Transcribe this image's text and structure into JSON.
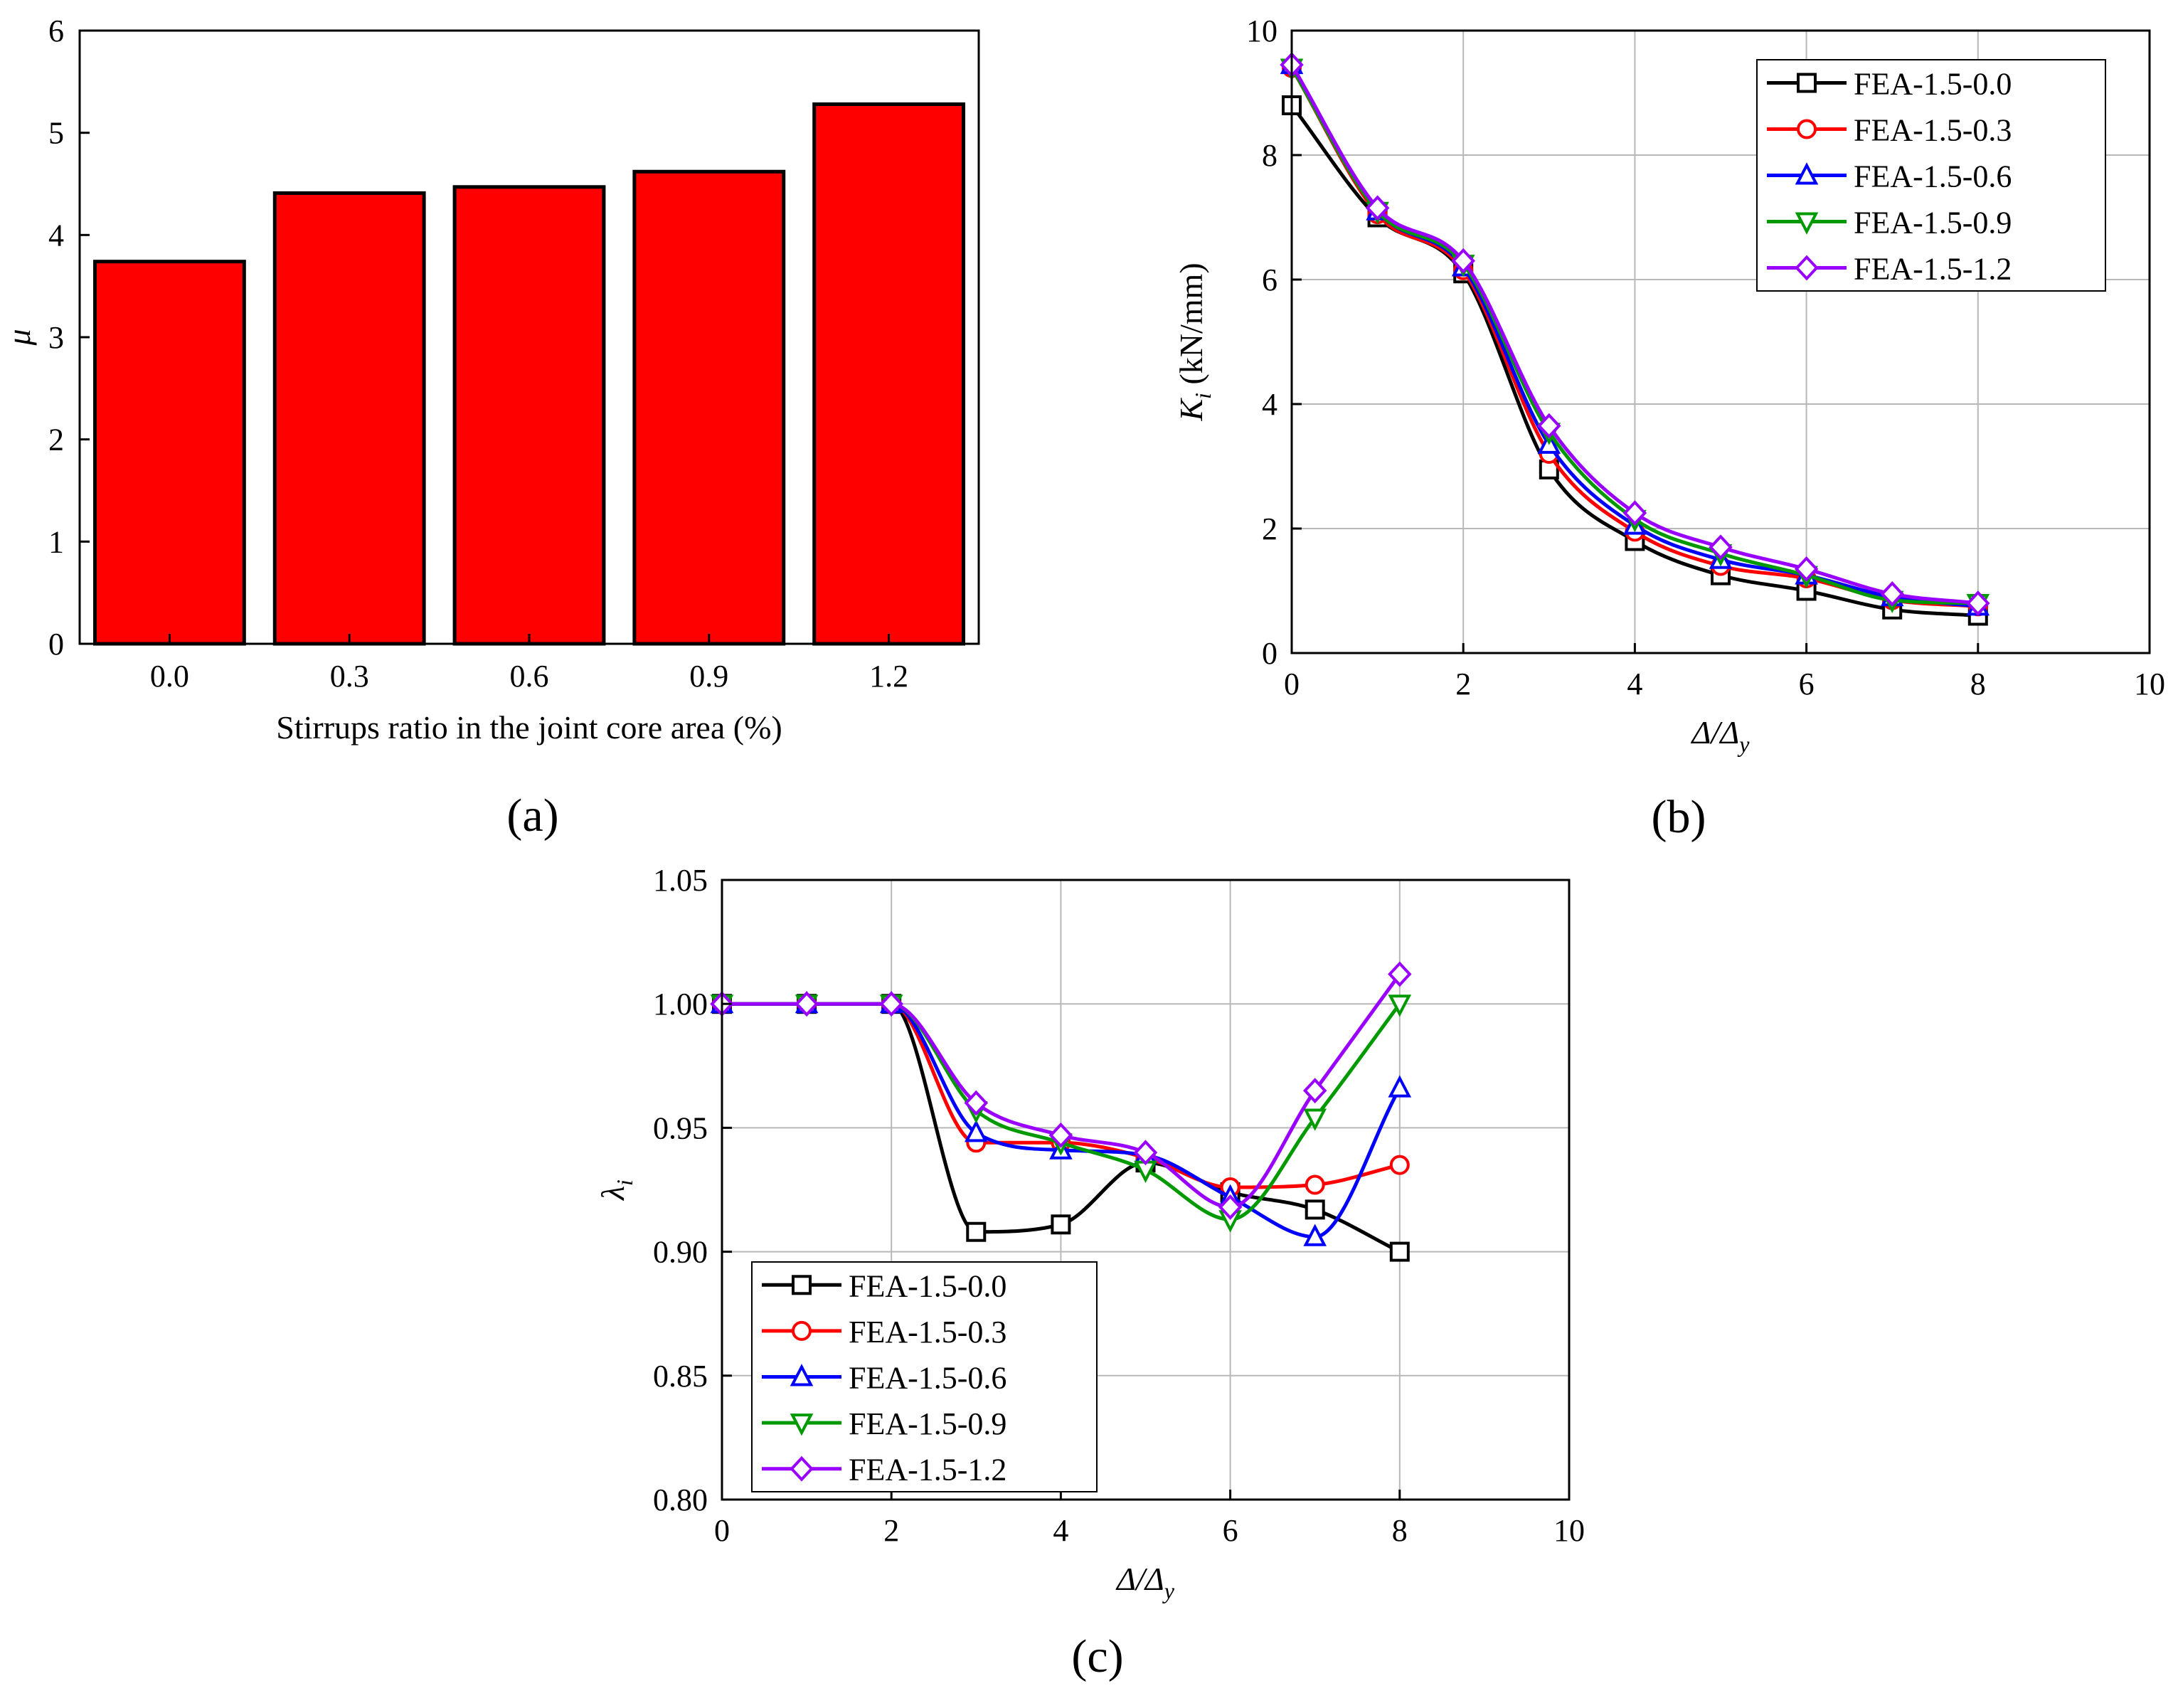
{
  "chart_data": [
    {
      "panel": "(a)",
      "type": "bar",
      "xlabel": "Stirrups ratio in the joint core area (%)",
      "ylabel": "μ",
      "categories": [
        "0.0",
        "0.3",
        "0.6",
        "0.9",
        "1.2"
      ],
      "values": [
        3.74,
        4.41,
        4.47,
        4.62,
        5.28
      ],
      "ylim": [
        0,
        6
      ],
      "yticks": [
        "0",
        "1",
        "2",
        "3",
        "4",
        "5",
        "6"
      ],
      "grid": false,
      "bar_color": "#ff0000"
    },
    {
      "panel": "(b)",
      "type": "line",
      "ylabel_main": "K",
      "ylabel_sub": "i",
      "ylabel_unit": " (kN/mm)",
      "xlabel_a": "Δ",
      "xlabel_b": "/Δ",
      "xlabel_sub": "y",
      "xlim": [
        0,
        10
      ],
      "ylim": [
        0,
        10
      ],
      "xticks": [
        "0",
        "2",
        "4",
        "6",
        "8",
        "10"
      ],
      "yticks": [
        "0",
        "2",
        "4",
        "6",
        "8",
        "10"
      ],
      "grid": true,
      "legend_position": "top-right",
      "x": [
        0,
        1,
        2,
        3,
        4,
        5,
        6,
        7,
        8
      ],
      "series": [
        {
          "name": "FEA-1.5-0.0",
          "color": "#000000",
          "marker": "square",
          "values": [
            8.8,
            7.0,
            6.1,
            2.95,
            1.8,
            1.25,
            1.0,
            0.7,
            0.6
          ]
        },
        {
          "name": "FEA-1.5-0.3",
          "color": "#ff0000",
          "marker": "circle",
          "values": [
            9.4,
            7.05,
            6.15,
            3.2,
            1.95,
            1.4,
            1.2,
            0.85,
            0.75
          ]
        },
        {
          "name": "FEA-1.5-0.6",
          "color": "#0000ff",
          "marker": "triangle-up",
          "values": [
            9.45,
            7.1,
            6.2,
            3.35,
            2.05,
            1.5,
            1.25,
            0.9,
            0.75
          ]
        },
        {
          "name": "FEA-1.5-0.9",
          "color": "#009900",
          "marker": "triangle-down",
          "values": [
            9.4,
            7.1,
            6.25,
            3.55,
            2.15,
            1.6,
            1.25,
            0.85,
            0.8
          ]
        },
        {
          "name": "FEA-1.5-1.2",
          "color": "#9900ff",
          "marker": "diamond",
          "values": [
            9.45,
            7.15,
            6.3,
            3.65,
            2.25,
            1.7,
            1.35,
            0.95,
            0.8
          ]
        }
      ]
    },
    {
      "panel": "(c)",
      "type": "line",
      "ylabel_main": "λ",
      "ylabel_sub": "i",
      "ylabel_unit": "",
      "xlabel_a": "Δ",
      "xlabel_b": "/Δ",
      "xlabel_sub": "y",
      "xlim": [
        0,
        10
      ],
      "ylim": [
        0.8,
        1.05
      ],
      "xticks": [
        "0",
        "2",
        "4",
        "6",
        "8",
        "10"
      ],
      "yticks": [
        "0.80",
        "0.85",
        "0.90",
        "0.95",
        "1.00",
        "1.05"
      ],
      "grid": true,
      "legend_position": "bottom-left",
      "x": [
        0,
        1,
        2,
        3,
        4,
        5,
        6,
        7,
        8
      ],
      "series": [
        {
          "name": "FEA-1.5-0.0",
          "color": "#000000",
          "marker": "square",
          "values": [
            1.0,
            1.0,
            1.0,
            0.908,
            0.911,
            0.936,
            0.924,
            0.917,
            0.9
          ]
        },
        {
          "name": "FEA-1.5-0.3",
          "color": "#ff0000",
          "marker": "circle",
          "values": [
            1.0,
            1.0,
            1.0,
            0.944,
            0.944,
            0.938,
            0.926,
            0.927,
            0.935
          ]
        },
        {
          "name": "FEA-1.5-0.6",
          "color": "#0000ff",
          "marker": "triangle-up",
          "values": [
            1.0,
            1.0,
            1.0,
            0.948,
            0.941,
            0.939,
            0.922,
            0.906,
            0.966
          ]
        },
        {
          "name": "FEA-1.5-0.9",
          "color": "#009900",
          "marker": "triangle-down",
          "values": [
            1.0,
            1.0,
            1.0,
            0.957,
            0.944,
            0.933,
            0.913,
            0.954,
            1.0
          ]
        },
        {
          "name": "FEA-1.5-1.2",
          "color": "#9900ff",
          "marker": "diamond",
          "values": [
            1.0,
            1.0,
            1.0,
            0.96,
            0.947,
            0.94,
            0.918,
            0.965,
            1.012
          ]
        }
      ]
    }
  ]
}
